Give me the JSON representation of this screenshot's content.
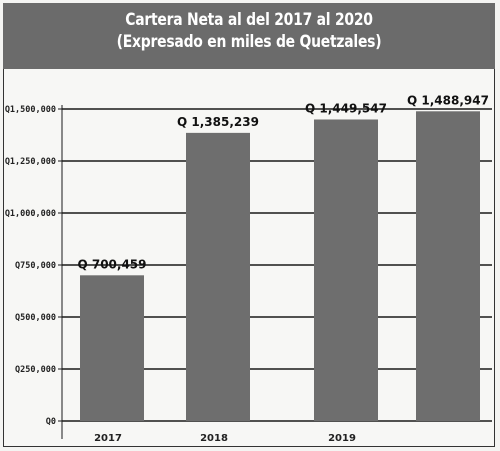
{
  "chart_data": {
    "type": "bar",
    "title": "Cartera Neta al del 2017 al 2020",
    "subtitle": "(Expresado en miles de Quetzales)",
    "xlabel": "",
    "ylabel": "",
    "categories": [
      "2017",
      "2018",
      "2019",
      ""
    ],
    "values": [
      700459,
      1385239,
      1449547,
      1488947
    ],
    "data_labels": [
      "Q 700,459",
      "Q 1,385,239",
      "Q 1,449,547",
      "Q 1,488,947"
    ],
    "y_ticks": [
      0,
      250000,
      500000,
      750000,
      1000000,
      1250000,
      1500000
    ],
    "y_tick_labels": [
      "Q0",
      "Q250,000",
      "Q500,000",
      "Q750,000",
      "Q1,000,000",
      "Q1,250,000",
      "Q1,500,000"
    ],
    "ylim": [
      0,
      1500000
    ],
    "grid": true,
    "legend": "none",
    "colors": {
      "bar": "#6e6e6e",
      "header": "#6b6b6b",
      "grid": "#1a1a1a"
    }
  }
}
